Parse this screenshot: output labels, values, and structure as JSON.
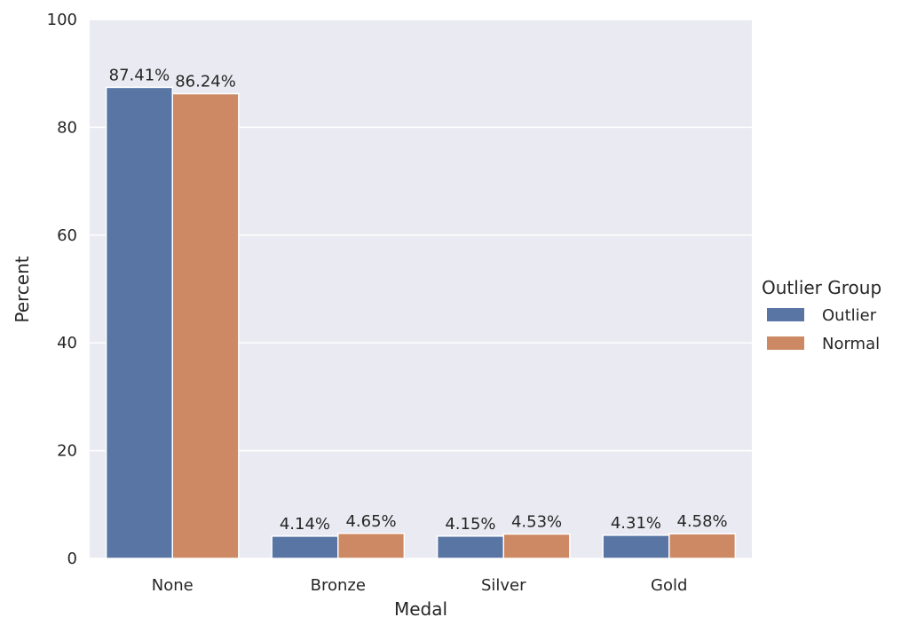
{
  "chart_data": {
    "type": "bar",
    "categories": [
      "None",
      "Bronze",
      "Silver",
      "Gold"
    ],
    "series": [
      {
        "name": "Outlier",
        "values": [
          87.41,
          4.14,
          4.15,
          4.31
        ],
        "labels": [
          "87.41%",
          "4.14%",
          "4.15%",
          "4.31%"
        ],
        "color": "#5875a4"
      },
      {
        "name": "Normal",
        "values": [
          86.24,
          4.65,
          4.53,
          4.58
        ],
        "labels": [
          "86.24%",
          "4.65%",
          "4.53%",
          "4.58%"
        ],
        "color": "#cc8963"
      }
    ],
    "xlabel": "Medal",
    "ylabel": "Percent",
    "ylim": [
      0,
      100
    ],
    "yticks": [
      "0",
      "20",
      "40",
      "60",
      "80",
      "100"
    ],
    "grid": true,
    "legend": {
      "title": "Outlier Group",
      "position": "right"
    },
    "plot_background": "#eaeaf2"
  }
}
